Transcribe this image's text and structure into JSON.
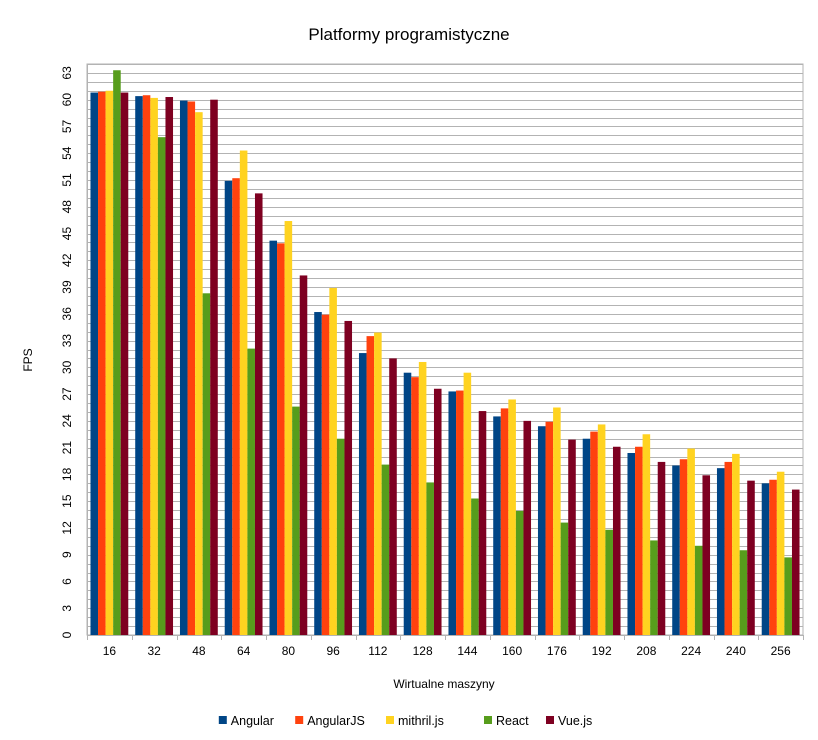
{
  "chart_data": {
    "type": "bar",
    "title": "Platformy programistyczne",
    "xlabel": "Wirtualne maszyny",
    "ylabel": "FPS",
    "ylim": [
      0,
      64
    ],
    "yticks": [
      0,
      3,
      6,
      9,
      12,
      15,
      18,
      21,
      24,
      27,
      30,
      33,
      36,
      39,
      42,
      45,
      48,
      51,
      54,
      57,
      60,
      63
    ],
    "grid": true,
    "legend_position": "bottom",
    "categories": [
      "16",
      "32",
      "48",
      "64",
      "80",
      "96",
      "112",
      "128",
      "144",
      "160",
      "176",
      "192",
      "208",
      "224",
      "240",
      "256"
    ],
    "series": [
      {
        "name": "Angular",
        "color": "#004586",
        "values": [
          60.8,
          60.4,
          59.9,
          50.9,
          44.2,
          36.2,
          31.6,
          29.4,
          27.3,
          24.5,
          23.4,
          22.0,
          20.4,
          19.0,
          18.7,
          17.0
        ]
      },
      {
        "name": "AngularJS",
        "color": "#ff420e",
        "values": [
          60.9,
          60.5,
          59.8,
          51.2,
          43.9,
          35.9,
          33.5,
          28.9,
          27.4,
          25.4,
          23.9,
          22.8,
          21.1,
          19.7,
          19.4,
          17.4
        ]
      },
      {
        "name": "mithril.js",
        "color": "#ffd320",
        "values": [
          61.0,
          60.2,
          58.6,
          54.3,
          46.4,
          38.9,
          33.9,
          30.6,
          29.4,
          26.4,
          25.5,
          23.6,
          22.5,
          20.9,
          20.3,
          18.3
        ]
      },
      {
        "name": "React",
        "color": "#579d1c",
        "values": [
          63.3,
          55.8,
          38.3,
          32.1,
          25.6,
          22.0,
          19.1,
          17.1,
          15.3,
          13.9,
          12.6,
          11.8,
          10.6,
          10.0,
          9.5,
          8.7
        ]
      },
      {
        "name": "Vue.js",
        "color": "#7e0021",
        "values": [
          60.8,
          60.3,
          60.0,
          49.5,
          40.3,
          35.2,
          31.0,
          27.6,
          25.1,
          24.0,
          21.9,
          21.1,
          19.4,
          17.9,
          17.3,
          16.3
        ]
      }
    ]
  }
}
